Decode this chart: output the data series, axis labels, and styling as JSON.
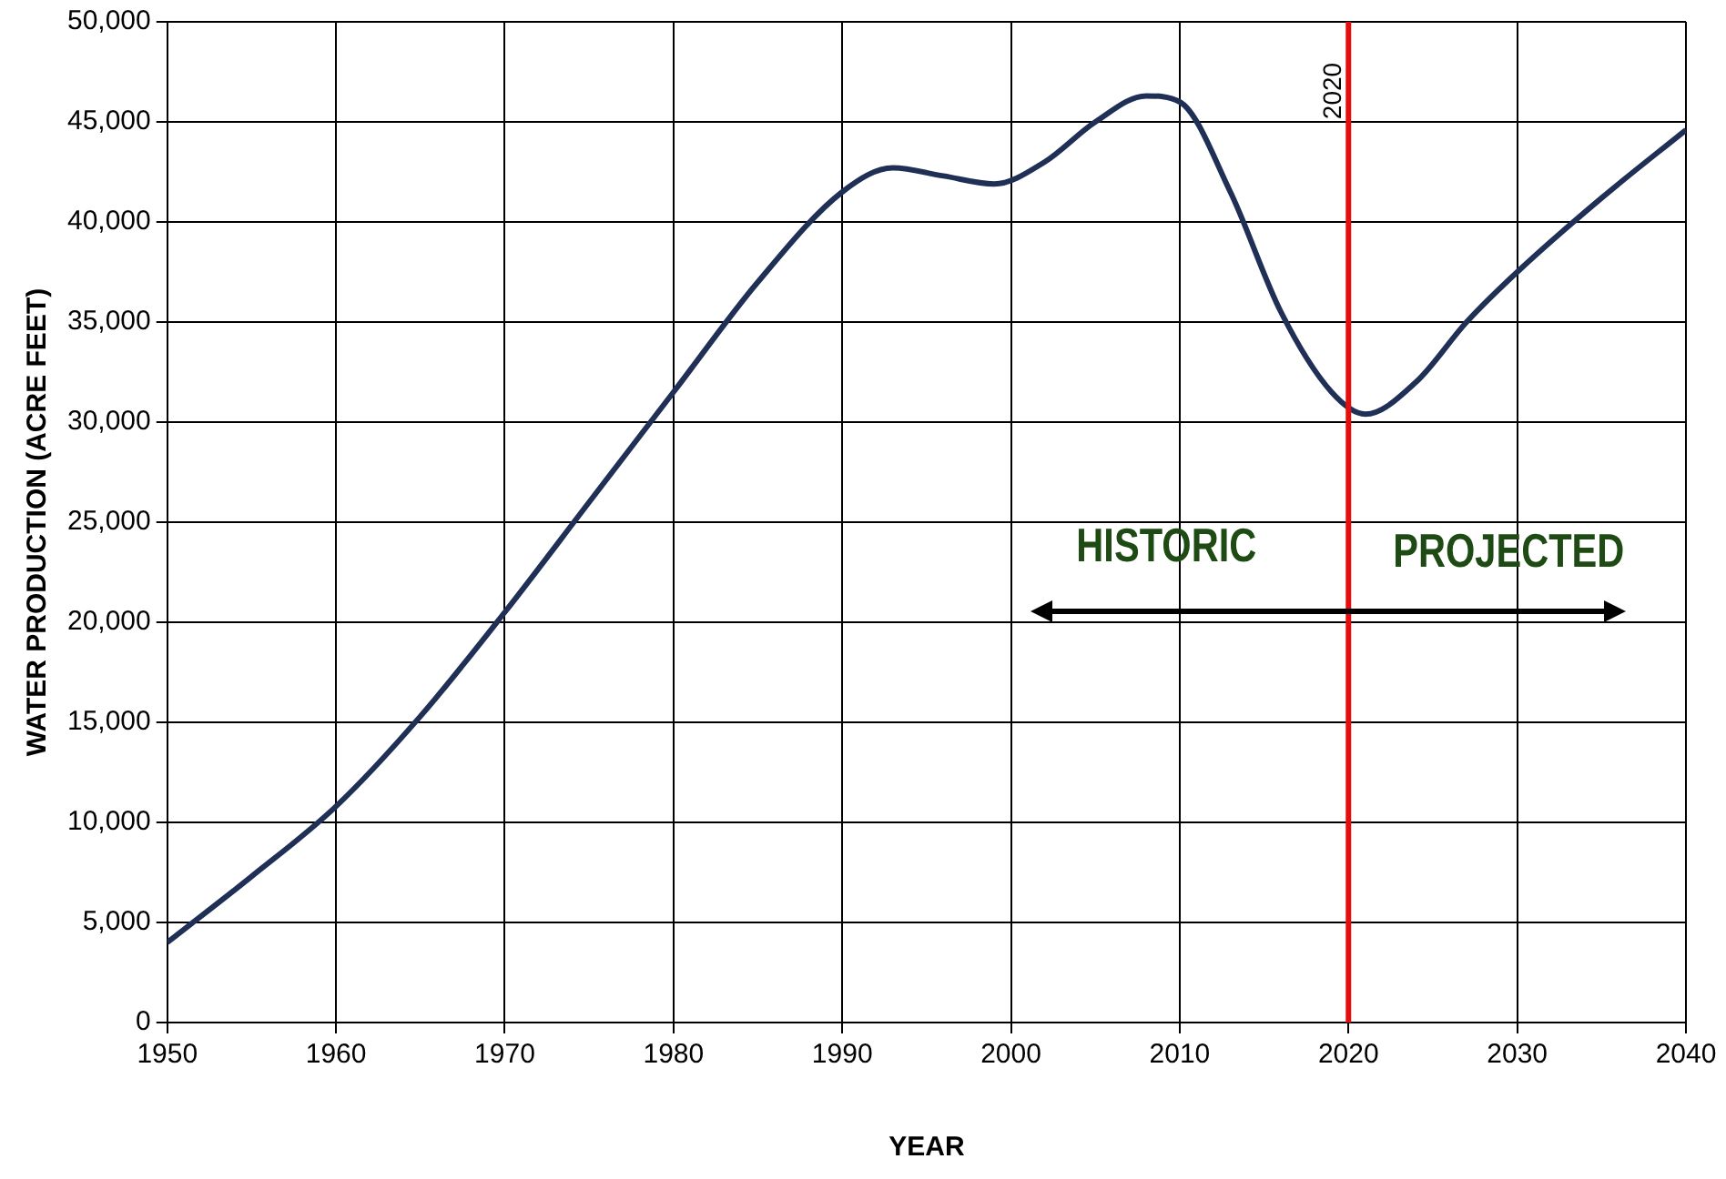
{
  "chart_data": {
    "type": "line",
    "xlabel": "YEAR",
    "ylabel": "WATER PRODUCTION (ACRE FEET)",
    "x": [
      1950,
      1955,
      1960,
      1965,
      1970,
      1975,
      1980,
      1985,
      1990,
      1993,
      1996,
      1999,
      2002,
      2005,
      2008,
      2010,
      2013,
      2016,
      2019,
      2021,
      2024,
      2027,
      2030,
      2035,
      2040
    ],
    "series": [
      {
        "color": "#1f2f55",
        "values": [
          4000,
          7300,
          10800,
          15300,
          20500,
          26000,
          31500,
          37000,
          41500,
          42700,
          42300,
          41900,
          43000,
          45000,
          46300,
          46000,
          41500,
          35500,
          31500,
          30400,
          32000,
          35000,
          37500,
          41200,
          44600
        ]
      }
    ],
    "xlim": [
      1950,
      2040
    ],
    "xticks": [
      1950,
      1960,
      1970,
      1980,
      1990,
      2000,
      2010,
      2020,
      2030,
      2040
    ],
    "ylim": [
      0,
      50000
    ],
    "yticks": [
      {
        "value": 0,
        "label": "0"
      },
      {
        "value": 5000,
        "label": "5,000"
      },
      {
        "value": 10000,
        "label": "10,000"
      },
      {
        "value": 15000,
        "label": "15,000"
      },
      {
        "value": 20000,
        "label": "20,000"
      },
      {
        "value": 25000,
        "label": "25,000"
      },
      {
        "value": 30000,
        "label": "30,000"
      },
      {
        "value": 35000,
        "label": "35,000"
      },
      {
        "value": 40000,
        "label": "40,000"
      },
      {
        "value": 45000,
        "label": "45,000"
      },
      {
        "value": 50000,
        "label": "50,000"
      }
    ],
    "ref_lines": [
      {
        "axis": "x",
        "value": 2020,
        "label": "2020",
        "color": "#e01010"
      }
    ],
    "annotations": [
      "HISTORIC",
      "PROJECTED"
    ],
    "grid": true,
    "legend": false,
    "marker": "none",
    "line_style": "solid"
  }
}
